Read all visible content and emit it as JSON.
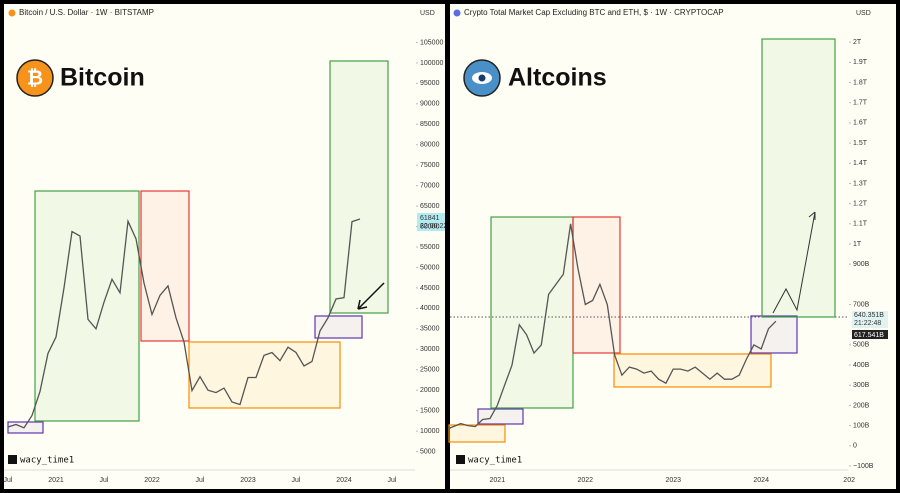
{
  "chart_data": [
    {
      "type": "line",
      "title": "Bitcoin / U.S. Dollar · 1W · BITSTAMP",
      "logo_text": "Bitcoin",
      "axis_unit": "USD",
      "watermark": "wacy_time1",
      "price_badge": [
        "61841",
        "22:00:22"
      ],
      "color": "#555555",
      "categories": [
        "Jul",
        null,
        null,
        null,
        null,
        null,
        "2021",
        null,
        null,
        null,
        null,
        null,
        "Jul",
        null,
        null,
        null,
        null,
        null,
        "2022",
        null,
        null,
        null,
        null,
        null,
        "Jul",
        null,
        null,
        null,
        null,
        null,
        "2023",
        null,
        null,
        null,
        null,
        null,
        "Jul",
        null,
        null,
        null,
        null,
        null,
        "2024",
        null,
        null,
        null,
        null,
        null,
        "Jul"
      ],
      "values": [
        11000,
        11600,
        10800,
        13800,
        19700,
        29000,
        33000,
        45000,
        58800,
        57700,
        37300,
        35000,
        41500,
        47100,
        43800,
        61300,
        57000,
        46200,
        38500,
        43200,
        45500,
        37700,
        31800,
        19900,
        23300,
        20000,
        19400,
        20500,
        17100,
        16500,
        23100,
        23100,
        28500,
        29200,
        27200,
        30500,
        29200,
        25900,
        27000,
        34500,
        37700,
        42300,
        42600,
        61200,
        61841,
        null,
        null,
        null,
        null
      ],
      "ylim": [
        0,
        110000
      ],
      "yticks": [
        5000,
        10000,
        15000,
        20000,
        25000,
        30000,
        35000,
        40000,
        45000,
        50000,
        55000,
        60000,
        65000,
        70000,
        75000,
        80000,
        85000,
        90000,
        95000,
        100000,
        105000
      ]
    },
    {
      "type": "line",
      "title": "Crypto Total Market Cap Excluding BTC and ETH, $ · 1W · CRYPTOCAP",
      "logo_text": "Altcoins",
      "axis_unit": "USD",
      "watermark": "wacy_time1",
      "price_badge": [
        "640.351B",
        "21:22:48",
        "617.541B"
      ],
      "color": "#555555",
      "categories": [
        null,
        null,
        null,
        null,
        null,
        null,
        null,
        "2021",
        null,
        null,
        null,
        null,
        null,
        null,
        null,
        null,
        null,
        null,
        null,
        "2022",
        null,
        null,
        null,
        null,
        null,
        null,
        null,
        null,
        null,
        null,
        null,
        "2023",
        null,
        null,
        null,
        null,
        null,
        null,
        null,
        null,
        null,
        null,
        null,
        "2024",
        null,
        null,
        null,
        null,
        null,
        null,
        null,
        null,
        null,
        null,
        null,
        "202"
      ],
      "values": [
        80,
        95,
        110,
        100,
        95,
        130,
        135,
        200,
        300,
        400,
        600,
        550,
        460,
        500,
        750,
        800,
        850,
        1100,
        880,
        700,
        720,
        800,
        700,
        450,
        350,
        390,
        380,
        360,
        370,
        330,
        310,
        380,
        380,
        370,
        390,
        360,
        330,
        360,
        330,
        330,
        350,
        430,
        500,
        480,
        580,
        617.541,
        null,
        null,
        null,
        null,
        null,
        null,
        null,
        null,
        null,
        null
      ],
      "ylim": [
        -120,
        2100
      ],
      "yticks": [
        {
          "value": -100,
          "label": "−100B"
        },
        0,
        {
          "value": 100,
          "label": "100B"
        },
        {
          "value": 200,
          "label": "200B"
        },
        {
          "value": 300,
          "label": "300B"
        },
        {
          "value": 400,
          "label": "400B"
        },
        {
          "value": 500,
          "label": "500B"
        },
        {
          "value": 700,
          "label": "700B"
        },
        {
          "value": 900,
          "label": "900B"
        },
        {
          "value": 1000,
          "label": "1T"
        },
        {
          "value": 1100,
          "label": "1.1T"
        },
        {
          "value": 1200,
          "label": "1.2T"
        },
        {
          "value": 1300,
          "label": "1.3T"
        },
        {
          "value": 1400,
          "label": "1.4T"
        },
        {
          "value": 1500,
          "label": "1.5T"
        },
        {
          "value": 1600,
          "label": "1.6T"
        },
        {
          "value": 1700,
          "label": "1.7T"
        },
        {
          "value": 1800,
          "label": "1.8T"
        },
        {
          "value": 1900,
          "label": "1.9T"
        },
        {
          "value": 2000,
          "label": "2T"
        }
      ]
    }
  ]
}
